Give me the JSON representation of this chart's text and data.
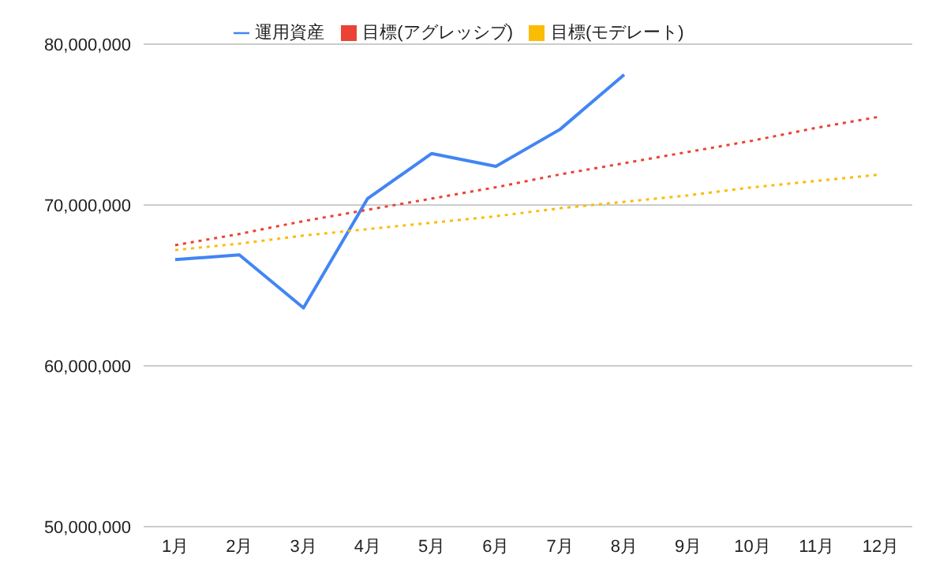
{
  "chart_data": {
    "type": "line",
    "categories": [
      "1月",
      "2月",
      "3月",
      "4月",
      "5月",
      "6月",
      "7月",
      "8月",
      "9月",
      "10月",
      "11月",
      "12月"
    ],
    "series": [
      {
        "name": "運用資産",
        "color": "#4285f4",
        "line_style": "solid",
        "values": [
          66600000,
          66900000,
          63600000,
          70400000,
          73200000,
          72400000,
          74700000,
          78100000,
          null,
          null,
          null,
          null
        ]
      },
      {
        "name": "目標(アグレッシブ)",
        "color": "#ea4335",
        "line_style": "dotted",
        "values": [
          67500000,
          68200000,
          69000000,
          69700000,
          70400000,
          71100000,
          71900000,
          72600000,
          73300000,
          74000000,
          74800000,
          75500000
        ]
      },
      {
        "name": "目標(モデレート)",
        "color": "#fbbc04",
        "line_style": "dotted",
        "values": [
          67200000,
          67600000,
          68100000,
          68500000,
          68900000,
          69300000,
          69800000,
          70200000,
          70600000,
          71100000,
          71500000,
          71900000
        ]
      }
    ],
    "ylim": [
      50000000,
      80000000
    ],
    "yticks": [
      {
        "value": 50000000,
        "label": "50,000,000"
      },
      {
        "value": 60000000,
        "label": "60,000,000"
      },
      {
        "value": 70000000,
        "label": "70,000,000"
      },
      {
        "value": 80000000,
        "label": "80,000,000"
      }
    ],
    "grid": "y",
    "legend": "top",
    "marker": "none"
  }
}
